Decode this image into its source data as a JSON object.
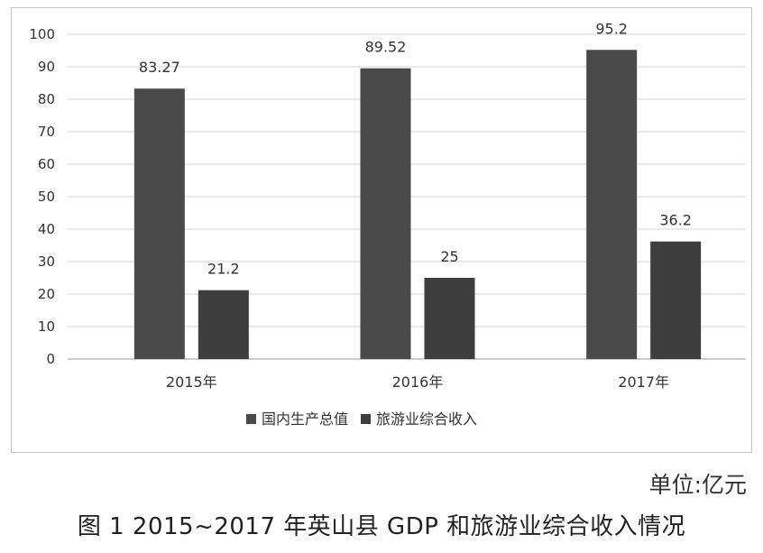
{
  "chart_data": {
    "type": "bar",
    "categories": [
      "2015年",
      "2016年",
      "2017年"
    ],
    "series": [
      {
        "name": "国内生产总值",
        "values": [
          83.27,
          89.52,
          95.2
        ],
        "color": "#4a4a4a"
      },
      {
        "name": "旅游业综合收入",
        "values": [
          21.2,
          25,
          36.2
        ],
        "color": "#3e3e3e"
      }
    ],
    "value_labels": [
      [
        "83.27",
        "89.52",
        "95.2"
      ],
      [
        "21.2",
        "25",
        "36.2"
      ]
    ],
    "ylim": [
      0,
      100
    ],
    "yticks": [
      0,
      10,
      20,
      30,
      40,
      50,
      60,
      70,
      80,
      90,
      100
    ],
    "grid": true,
    "legend_position": "bottom"
  },
  "unit": "单位:亿元",
  "caption": "图 1   2015~2017 年英山县 GDP 和旅游业综合收入情况"
}
